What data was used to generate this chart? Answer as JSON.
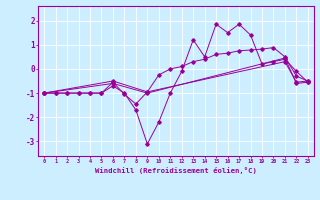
{
  "title": "",
  "xlabel": "Windchill (Refroidissement éolien,°C)",
  "bg_color": "#cceeff",
  "line_color": "#990099",
  "grid_color": "#ffffff",
  "xlim": [
    -0.5,
    23.5
  ],
  "ylim": [
    -3.6,
    2.6
  ],
  "xticks": [
    0,
    1,
    2,
    3,
    4,
    5,
    6,
    7,
    8,
    9,
    10,
    11,
    12,
    13,
    14,
    15,
    16,
    17,
    18,
    19,
    20,
    21,
    22,
    23
  ],
  "yticks": [
    -3,
    -2,
    -1,
    0,
    1,
    2
  ],
  "line1_x": [
    0,
    1,
    2,
    3,
    4,
    5,
    6,
    7,
    8,
    9,
    10,
    11,
    12,
    13,
    14,
    15,
    16,
    17,
    18,
    19,
    20,
    21,
    22,
    23
  ],
  "line1_y": [
    -1.0,
    -1.0,
    -1.0,
    -1.0,
    -1.0,
    -1.0,
    -0.7,
    -1.0,
    -1.7,
    -3.1,
    -2.2,
    -1.0,
    -0.1,
    1.2,
    0.5,
    1.85,
    1.5,
    1.85,
    1.4,
    0.2,
    0.3,
    0.4,
    -0.1,
    -0.55
  ],
  "line2_x": [
    0,
    6,
    9,
    21,
    22,
    23
  ],
  "line2_y": [
    -1.0,
    -0.6,
    -1.0,
    0.45,
    -0.6,
    -0.55
  ],
  "line3_x": [
    0,
    6,
    9,
    21,
    22,
    23
  ],
  "line3_y": [
    -1.0,
    -0.5,
    -0.95,
    0.3,
    -0.55,
    -0.5
  ],
  "line4_x": [
    0,
    1,
    2,
    3,
    4,
    5,
    6,
    7,
    8,
    9,
    10,
    11,
    12,
    13,
    14,
    15,
    16,
    17,
    18,
    19,
    20,
    21,
    22,
    23
  ],
  "line4_y": [
    -1.0,
    -1.0,
    -1.0,
    -1.0,
    -1.0,
    -1.0,
    -0.55,
    -1.05,
    -1.45,
    -0.95,
    -0.25,
    0.0,
    0.1,
    0.3,
    0.4,
    0.6,
    0.65,
    0.75,
    0.78,
    0.82,
    0.88,
    0.5,
    -0.3,
    -0.5
  ]
}
